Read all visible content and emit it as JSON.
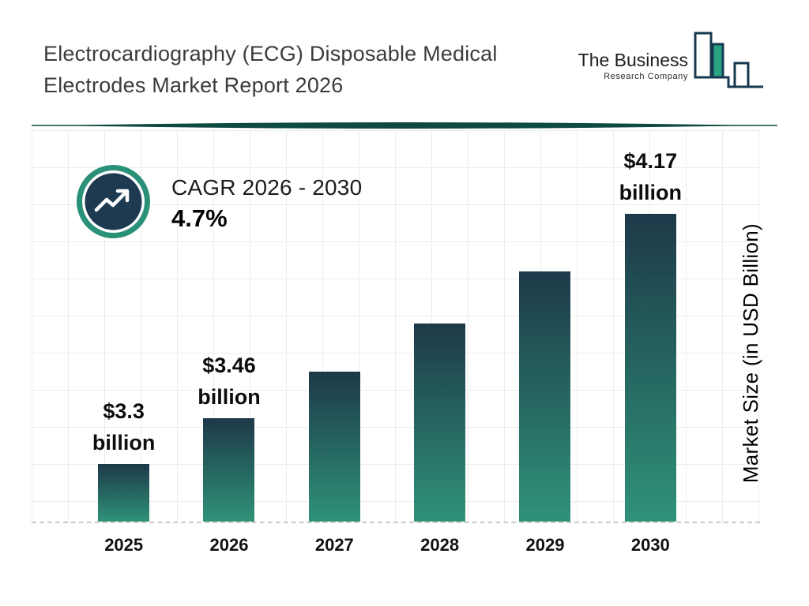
{
  "header": {
    "title_lines": [
      "Electrocardiography (ECG) Disposable Medical",
      "Electrodes Market Report 2026"
    ],
    "logo": {
      "line1": "The Business",
      "line2": "Research Company",
      "icon": "bar-chart-logo-icon"
    }
  },
  "cagr": {
    "label": "CAGR 2026 - 2030",
    "value": "4.7%",
    "icon": "trend-up-arrow-icon"
  },
  "chart_data": {
    "type": "bar",
    "title": "Electrocardiography (ECG) Disposable Medical Electrodes Market Report 2026",
    "categories": [
      "2025",
      "2026",
      "2027",
      "2028",
      "2029",
      "2030"
    ],
    "values": [
      3.3,
      3.46,
      3.62,
      3.79,
      3.97,
      4.17
    ],
    "bars": [
      {
        "year": "2025",
        "value": 3.3,
        "label_amount": "$3.3",
        "label_unit": "billion"
      },
      {
        "year": "2026",
        "value": 3.46,
        "label_amount": "$3.46",
        "label_unit": "billion"
      },
      {
        "year": "2027",
        "value": 3.62,
        "label_amount": "",
        "label_unit": ""
      },
      {
        "year": "2028",
        "value": 3.79,
        "label_amount": "",
        "label_unit": ""
      },
      {
        "year": "2029",
        "value": 3.97,
        "label_amount": "",
        "label_unit": ""
      },
      {
        "year": "2030",
        "value": 4.17,
        "label_amount": "$4.17",
        "label_unit": "billion"
      }
    ],
    "xlabel": "",
    "ylabel": "Market Size (in USD Billion)",
    "baseline_value": 3.1,
    "ylim": [
      3.1,
      4.17
    ],
    "grid": true,
    "legend": false,
    "colors": {
      "bar_gradient_top": "#1d3949",
      "bar_gradient_bottom": "#2f9278",
      "accent_teal": "#2a9077",
      "navy": "#1d3a50",
      "divider_teal": "#0e4a42"
    }
  }
}
